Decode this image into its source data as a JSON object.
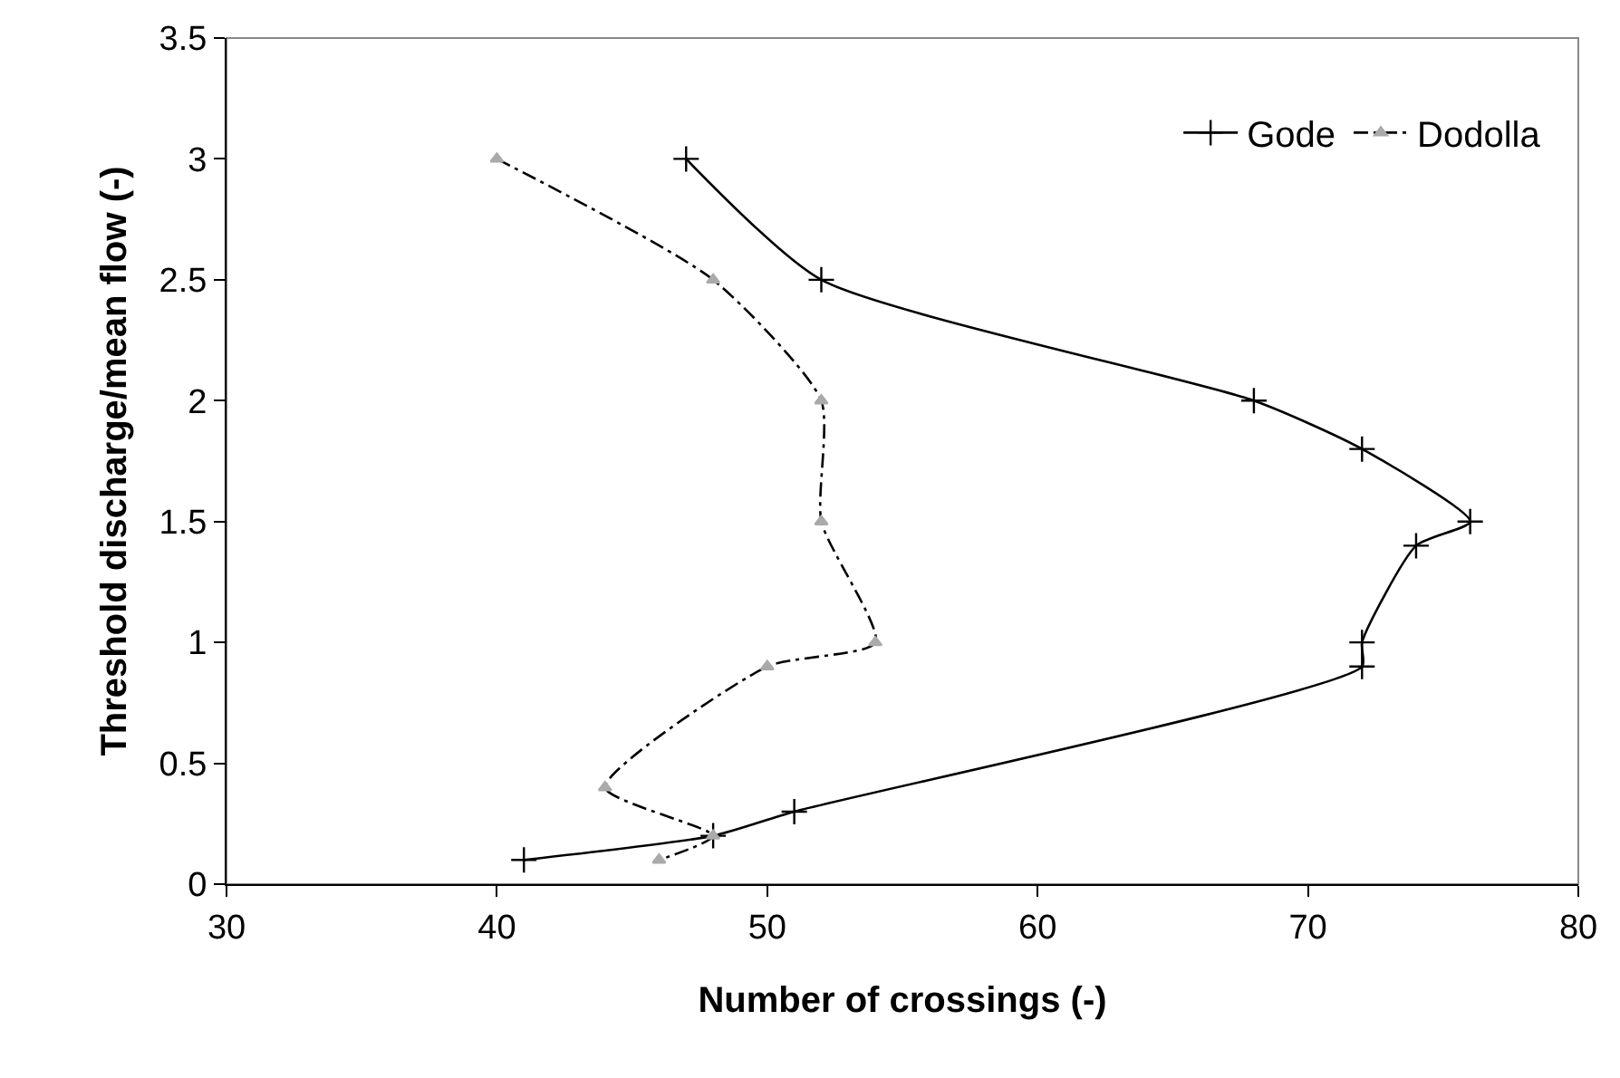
{
  "chart_data": {
    "type": "line",
    "xlabel": "Number of crossings (-)",
    "ylabel": "Threshold discharge/mean flow (-)",
    "xlim": [
      30,
      80
    ],
    "xticks": [
      30,
      40,
      50,
      60,
      70,
      80
    ],
    "ylim": [
      0,
      3.5
    ],
    "yticks": [
      0,
      0.5,
      1,
      1.5,
      2,
      2.5,
      3,
      3.5
    ],
    "grid": false,
    "legend": "top right",
    "series": [
      {
        "name": "Gode",
        "color": "#000000",
        "marker": "cross",
        "line_style": "solid",
        "x": [
          47,
          52,
          68,
          72,
          76,
          74,
          72,
          72,
          51,
          48,
          41
        ],
        "values": [
          3.0,
          2.5,
          2.0,
          1.8,
          1.5,
          1.4,
          1.0,
          0.9,
          0.3,
          0.2,
          0.1
        ]
      },
      {
        "name": "Dodolla",
        "color": "#000000",
        "marker": "triangle",
        "line_style": "dashed",
        "x": [
          40,
          48,
          52,
          52,
          54,
          50,
          44,
          48,
          46
        ],
        "values": [
          3.0,
          2.5,
          2.0,
          1.5,
          1.0,
          0.9,
          0.4,
          0.2,
          0.1
        ]
      }
    ]
  }
}
